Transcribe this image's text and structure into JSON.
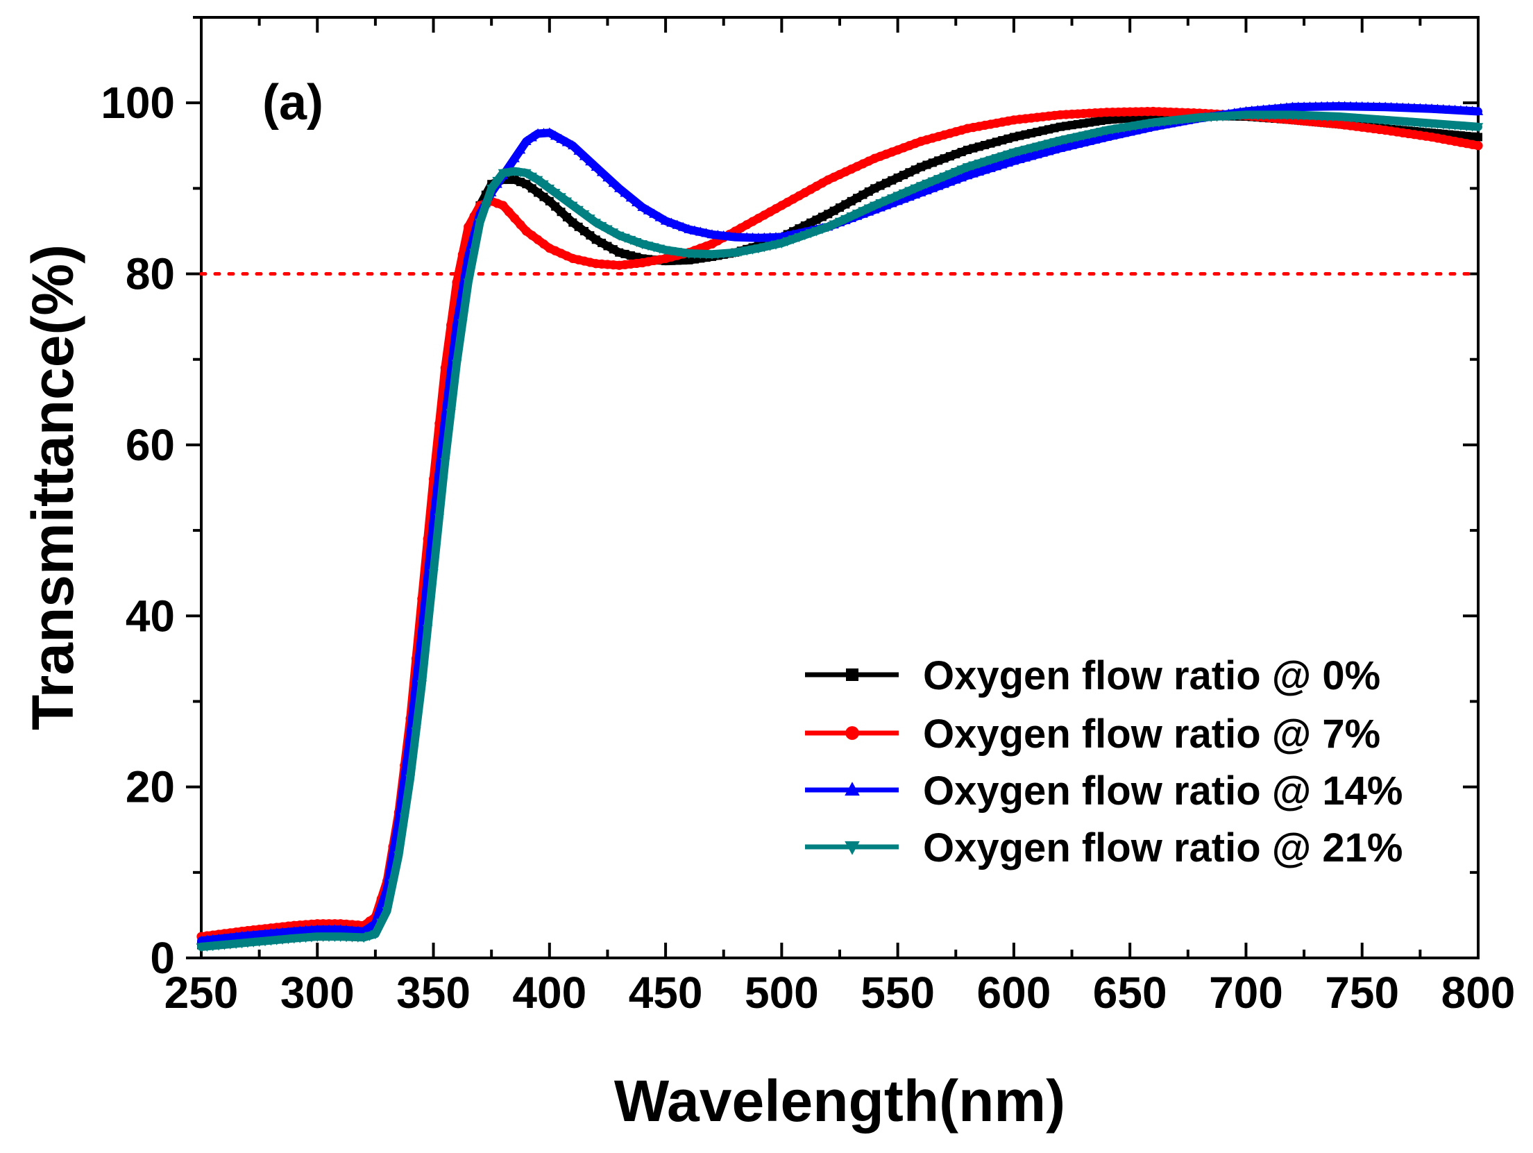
{
  "chart_data": {
    "type": "line",
    "panel_label": "(a)",
    "xlabel": "Wavelength(nm)",
    "ylabel": "Transmittance(%)",
    "xlim": [
      250,
      800
    ],
    "ylim": [
      0,
      110
    ],
    "x_ticks": [
      250,
      300,
      350,
      400,
      450,
      500,
      550,
      600,
      650,
      700,
      750,
      800
    ],
    "y_ticks": [
      0,
      20,
      40,
      60,
      80,
      100
    ],
    "x_tick_labels": [
      "250",
      "300",
      "350",
      "400",
      "450",
      "500",
      "550",
      "600",
      "650",
      "700",
      "750",
      "800"
    ],
    "y_tick_labels": [
      "0",
      "20",
      "40",
      "60",
      "80",
      "100"
    ],
    "reference_line": {
      "y": 80,
      "style": "dotted",
      "color": "#ff0000"
    },
    "legend_position": "lower-right",
    "series": [
      {
        "name": "Oxygen flow ratio @ 0%",
        "color": "#000000",
        "marker": "square",
        "x": [
          250,
          270,
          290,
          300,
          310,
          320,
          325,
          330,
          335,
          340,
          345,
          350,
          355,
          360,
          365,
          370,
          375,
          380,
          385,
          390,
          400,
          410,
          420,
          430,
          440,
          450,
          460,
          470,
          480,
          490,
          500,
          520,
          540,
          560,
          580,
          600,
          620,
          640,
          660,
          680,
          700,
          720,
          740,
          760,
          780,
          800
        ],
        "y": [
          1.5,
          2.3,
          3.0,
          3.2,
          3.3,
          3.2,
          3.8,
          6.5,
          13,
          22,
          33,
          46,
          60,
          72,
          82,
          88,
          90.5,
          91,
          91,
          90.5,
          88.5,
          86,
          84,
          82.5,
          81.8,
          81.5,
          81.6,
          82,
          82.5,
          83.3,
          84.3,
          87,
          90,
          92.5,
          94.5,
          96,
          97.2,
          98,
          98.4,
          98.5,
          98.4,
          98,
          97.5,
          97,
          96.5,
          96
        ]
      },
      {
        "name": "Oxygen flow ratio @ 7%",
        "color": "#ff0000",
        "marker": "circle",
        "x": [
          250,
          270,
          290,
          300,
          310,
          320,
          325,
          330,
          335,
          340,
          345,
          350,
          355,
          360,
          365,
          370,
          375,
          380,
          390,
          400,
          410,
          420,
          430,
          440,
          450,
          460,
          470,
          480,
          490,
          500,
          520,
          540,
          560,
          580,
          600,
          620,
          640,
          660,
          680,
          700,
          720,
          740,
          760,
          780,
          800
        ],
        "y": [
          2.5,
          3.2,
          3.8,
          4.0,
          4.0,
          3.8,
          4.8,
          9,
          17,
          28,
          42,
          56,
          69,
          79,
          85.5,
          88,
          88.5,
          88,
          85,
          83,
          81.8,
          81.2,
          81,
          81.3,
          81.8,
          82.5,
          83.5,
          85,
          86.5,
          88,
          91,
          93.5,
          95.5,
          97,
          98,
          98.6,
          98.9,
          99,
          98.8,
          98.5,
          98,
          97.5,
          96.8,
          96,
          95
        ]
      },
      {
        "name": "Oxygen flow ratio @ 14%",
        "color": "#0000ff",
        "marker": "triangle-up",
        "x": [
          250,
          270,
          290,
          300,
          310,
          320,
          325,
          330,
          335,
          340,
          345,
          350,
          355,
          360,
          365,
          370,
          375,
          380,
          385,
          390,
          395,
          400,
          410,
          420,
          430,
          440,
          450,
          460,
          470,
          480,
          490,
          500,
          520,
          540,
          560,
          580,
          600,
          620,
          640,
          660,
          680,
          700,
          720,
          740,
          760,
          780,
          800
        ],
        "y": [
          2.0,
          2.6,
          3.1,
          3.3,
          3.3,
          3.1,
          4.0,
          8,
          16,
          26,
          38,
          51,
          63,
          74,
          82,
          87,
          89.5,
          91.5,
          93.5,
          95.5,
          96.4,
          96.5,
          95,
          92.5,
          90,
          87.8,
          86.2,
          85.2,
          84.6,
          84.3,
          84.2,
          84.3,
          85.5,
          87.5,
          89.5,
          91.5,
          93.2,
          94.7,
          96,
          97.2,
          98.2,
          99,
          99.5,
          99.6,
          99.5,
          99.3,
          99
        ]
      },
      {
        "name": "Oxygen flow ratio @ 21%",
        "color": "#008080",
        "marker": "triangle-down",
        "x": [
          250,
          270,
          290,
          300,
          310,
          320,
          325,
          330,
          335,
          340,
          345,
          350,
          355,
          360,
          365,
          370,
          375,
          380,
          385,
          390,
          395,
          400,
          410,
          420,
          430,
          440,
          450,
          460,
          470,
          480,
          490,
          500,
          520,
          540,
          560,
          580,
          600,
          620,
          640,
          660,
          680,
          700,
          720,
          740,
          760,
          780,
          800
        ],
        "y": [
          1.3,
          1.8,
          2.3,
          2.5,
          2.5,
          2.4,
          2.8,
          5.5,
          12,
          21,
          32,
          45,
          58,
          69.5,
          79,
          86,
          90,
          91.8,
          92,
          91.8,
          91,
          90,
          88,
          86,
          84.5,
          83.5,
          82.8,
          82.4,
          82.3,
          82.5,
          83,
          83.6,
          85.5,
          88,
          90.3,
          92.5,
          94.2,
          95.6,
          96.8,
          97.7,
          98.3,
          98.6,
          98.6,
          98.4,
          98,
          97.6,
          97.2
        ]
      }
    ]
  }
}
